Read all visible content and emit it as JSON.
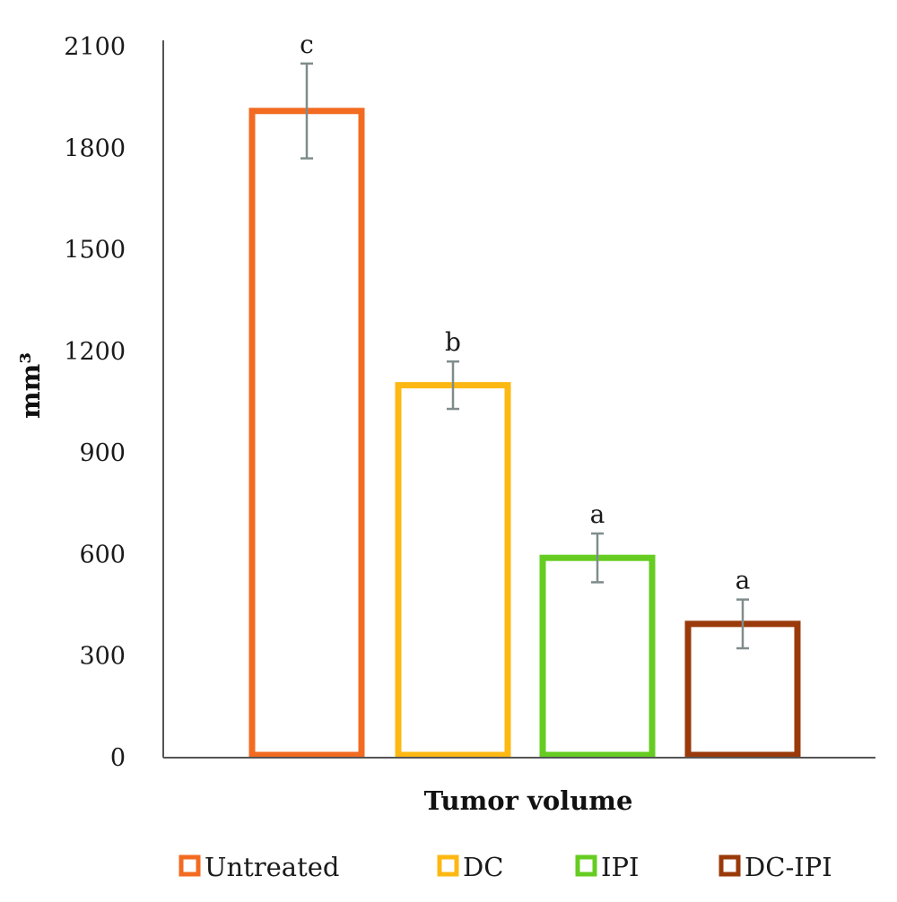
{
  "chart_data": {
    "type": "bar",
    "xlabel": "Tumor volume",
    "ylabel": "mm³",
    "ylim": [
      0,
      2100
    ],
    "yticks": [
      0,
      300,
      600,
      900,
      1200,
      1500,
      1800,
      2100
    ],
    "grid": false,
    "legend_position": "bottom",
    "series": [
      {
        "name": "Untreated",
        "value": 1910,
        "error": 140,
        "significance": "c",
        "color": "#f26b21"
      },
      {
        "name": "DC",
        "value": 1100,
        "error": 70,
        "significance": "b",
        "color": "#fdb813"
      },
      {
        "name": "IPI",
        "value": 590,
        "error": 72,
        "significance": "a",
        "color": "#66cc22"
      },
      {
        "name": "DC-IPI",
        "value": 395,
        "error": 72,
        "significance": "a",
        "color": "#9a3a0a"
      }
    ],
    "error_bar_color": "#7f8c8c"
  }
}
